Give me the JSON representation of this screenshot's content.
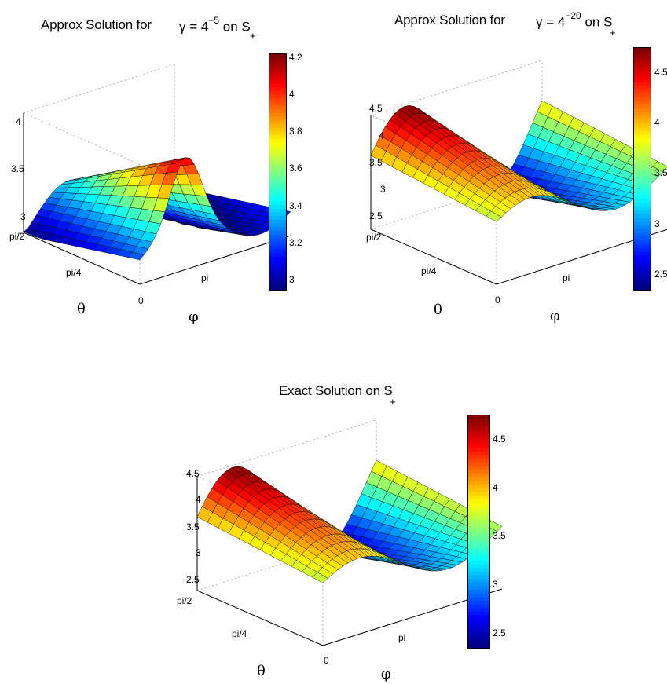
{
  "chart_data": [
    {
      "type": "surface",
      "title": "Approx Solution for",
      "title_symbol": "γ = 4",
      "title_exponent": "−5",
      "title_tail": "on S",
      "title_subscript": "+",
      "xlabel": "φ",
      "ylabel": "θ",
      "x_ticks": [
        "pi"
      ],
      "y_ticks": [
        "0",
        "pi/4",
        "pi/2"
      ],
      "z_ticks": [
        "3",
        "3.5",
        "4"
      ],
      "zlim": [
        2.95,
        4.22
      ],
      "colorbar_ticks": [
        "3",
        "3.2",
        "3.4",
        "3.6",
        "3.8",
        "4",
        "4.2"
      ],
      "colorbar_range": [
        2.95,
        4.22
      ],
      "colormap": "jet",
      "variant": "approx5"
    },
    {
      "type": "surface",
      "title": "Approx Solution for",
      "title_symbol": "γ = 4",
      "title_exponent": "−20",
      "title_tail": "on S",
      "title_subscript": "+",
      "xlabel": "φ",
      "ylabel": "θ",
      "x_ticks": [
        "pi"
      ],
      "y_ticks": [
        "0",
        "pi/4",
        "pi/2"
      ],
      "z_ticks": [
        "2.5",
        "3",
        "3.5",
        "4",
        "4.5"
      ],
      "zlim": [
        2.35,
        4.75
      ],
      "colorbar_ticks": [
        "2.5",
        "3",
        "3.5",
        "4",
        "4.5"
      ],
      "colorbar_range": [
        2.35,
        4.75
      ],
      "colormap": "jet",
      "variant": "approx20"
    },
    {
      "type": "surface",
      "title": "Exact Solution on S",
      "title_subscript": "+",
      "xlabel": "φ",
      "ylabel": "θ",
      "x_ticks": [
        "pi"
      ],
      "y_ticks": [
        "0",
        "pi/4",
        "pi/2"
      ],
      "z_ticks": [
        "2.5",
        "3",
        "3.5",
        "4",
        "4.5"
      ],
      "zlim": [
        2.35,
        4.75
      ],
      "colorbar_ticks": [
        "2.5",
        "3",
        "3.5",
        "4",
        "4.5"
      ],
      "colorbar_range": [
        2.35,
        4.75
      ],
      "colormap": "jet",
      "variant": "exact"
    }
  ]
}
